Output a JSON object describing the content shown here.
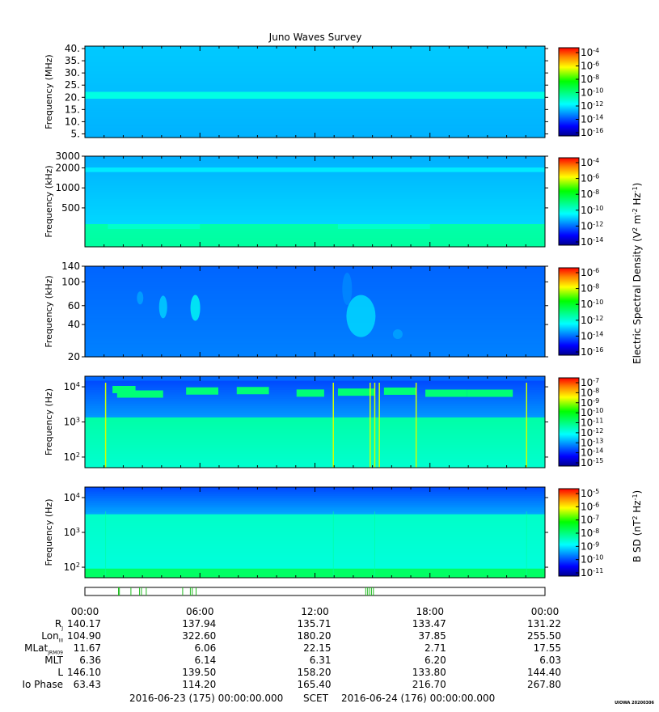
{
  "title": "Juno Waves Survey",
  "stamp": "UIOWA 20200306",
  "chart_data": [
    {
      "type": "heatmap",
      "panel": 1,
      "ylabel": "Frequency (MHz)",
      "yscale": "linear",
      "ylim": [
        3.5,
        41
      ],
      "yticks": [
        5,
        10,
        15,
        20,
        25,
        30,
        35,
        40
      ],
      "ytick_labels": [
        "5.",
        "10.",
        "15.",
        "20.",
        "25.",
        "30.",
        "35.",
        "40."
      ],
      "colorbar_ticks": [
        "10^-4",
        "10^-6",
        "10^-8",
        "10^-10",
        "10^-12",
        "10^-14",
        "10^-16"
      ],
      "colorbar_range": [
        -17,
        -4
      ],
      "description_level": {
        "background": -13,
        "band_21MHz": -12
      }
    },
    {
      "type": "heatmap",
      "panel": 2,
      "ylabel": "Frequency (kHz)",
      "yscale": "log",
      "ylim": [
        130,
        3000
      ],
      "yticks": [
        500,
        1000,
        2000,
        3000
      ],
      "ytick_labels": [
        "500",
        "1000",
        "2000",
        "3000"
      ],
      "colorbar_ticks": [
        "10^-4",
        "10^-6",
        "10^-8",
        "10^-10",
        "10^-12",
        "10^-14"
      ],
      "colorbar_range": [
        -15,
        -3
      ],
      "colorbar_title": "Electric Spectral Density (V^2 m^-2 Hz^-1)"
    },
    {
      "type": "heatmap",
      "panel": 3,
      "ylabel": "Frequency (kHz)",
      "yscale": "log",
      "ylim": [
        20,
        140
      ],
      "yticks": [
        20,
        40,
        60,
        100,
        140
      ],
      "ytick_labels": [
        "20",
        "40",
        "60",
        "100",
        "140"
      ],
      "colorbar_ticks": [
        "10^-6",
        "10^-8",
        "10^-10",
        "10^-12",
        "10^-14",
        "10^-16"
      ],
      "colorbar_range": [
        -17,
        -6
      ]
    },
    {
      "type": "heatmap",
      "panel": 4,
      "ylabel": "Frequency (Hz)",
      "yscale": "log",
      "ylim": [
        50,
        20000
      ],
      "yticks": [
        100,
        1000,
        10000
      ],
      "ytick_labels": [
        "10^2",
        "10^3",
        "10^4"
      ],
      "colorbar_ticks": [
        "10^-7",
        "10^-8",
        "10^-9",
        "10^-10",
        "10^-11",
        "10^-12",
        "10^-13",
        "10^-14",
        "10^-15"
      ],
      "colorbar_range": [
        -15,
        -7
      ]
    },
    {
      "type": "heatmap",
      "panel": 5,
      "ylabel": "Frequency (Hz)",
      "yscale": "log",
      "ylim": [
        50,
        20000
      ],
      "yticks": [
        100,
        1000,
        10000
      ],
      "ytick_labels": [
        "10^2",
        "10^3",
        "10^4"
      ],
      "colorbar_ticks": [
        "10^-5",
        "10^-6",
        "10^-7",
        "10^-8",
        "10^-9",
        "10^-10",
        "10^-11"
      ],
      "colorbar_range": [
        -11,
        -4.5
      ],
      "colorbar_title": "B SD (nT^2 Hz^-1)"
    },
    {
      "type": "bar",
      "panel": 6,
      "description": "mode indicator strip",
      "events_hours": [
        1.75,
        1.8,
        2.4,
        2.85,
        2.95,
        3.2,
        5.1,
        5.5,
        5.6,
        5.8,
        14.65,
        14.75,
        14.85,
        14.95,
        15.05
      ]
    }
  ],
  "time_axis": {
    "xlim_hours": [
      0,
      24
    ],
    "labels": [
      "00:00",
      "06:00",
      "12:00",
      "18:00",
      "00:00"
    ]
  },
  "ephemeris": {
    "rows": [
      {
        "label": "R",
        "sub": "J",
        "values": [
          "140.17",
          "137.94",
          "135.71",
          "133.47",
          "131.22"
        ]
      },
      {
        "label": "Lon",
        "sub": "III",
        "values": [
          "104.90",
          "322.60",
          "180.20",
          "37.85",
          "255.50"
        ]
      },
      {
        "label": "MLat",
        "sub": "JRM09",
        "values": [
          "11.67",
          "6.06",
          "22.15",
          "2.71",
          "17.55"
        ]
      },
      {
        "label": "MLT",
        "sub": "",
        "values": [
          "6.36",
          "6.14",
          "6.31",
          "6.20",
          "6.03"
        ]
      },
      {
        "label": "L",
        "sub": "",
        "values": [
          "146.10",
          "139.50",
          "158.20",
          "133.80",
          "144.40"
        ]
      },
      {
        "label": "Io Phase",
        "sub": "",
        "values": [
          "63.43",
          "114.20",
          "165.40",
          "216.70",
          "267.80"
        ]
      }
    ]
  },
  "scet": {
    "start": "2016-06-23 (175) 00:00:00.000",
    "label": "SCET",
    "end": "2016-06-24 (176) 00:00:00.000"
  }
}
